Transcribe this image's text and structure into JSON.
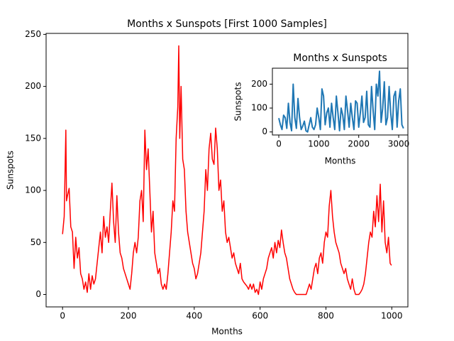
{
  "chart_data": [
    {
      "type": "line",
      "title": "Months x Sunspots [First 1000 Samples]",
      "x_label": "Months",
      "y_label": "Sunspots",
      "xlim": [
        -49.95,
        1048.95
      ],
      "ylim": [
        -11.95,
        250.95
      ],
      "xticks": [
        0,
        200,
        400,
        600,
        800,
        1000
      ],
      "yticks": [
        0,
        50,
        100,
        150,
        200,
        250
      ],
      "x": [
        0,
        5,
        10,
        12,
        15,
        20,
        25,
        30,
        35,
        40,
        45,
        50,
        55,
        60,
        65,
        70,
        75,
        80,
        85,
        90,
        95,
        100,
        105,
        110,
        115,
        120,
        125,
        130,
        135,
        140,
        145,
        150,
        155,
        160,
        165,
        170,
        175,
        180,
        185,
        190,
        195,
        200,
        205,
        210,
        215,
        220,
        225,
        230,
        235,
        240,
        245,
        250,
        255,
        260,
        265,
        270,
        275,
        280,
        285,
        290,
        295,
        300,
        305,
        310,
        315,
        320,
        325,
        330,
        335,
        340,
        345,
        350,
        353,
        356,
        360,
        365,
        370,
        375,
        380,
        385,
        390,
        395,
        400,
        405,
        410,
        415,
        420,
        425,
        430,
        435,
        440,
        445,
        450,
        455,
        460,
        465,
        470,
        475,
        480,
        485,
        490,
        495,
        500,
        505,
        510,
        515,
        520,
        525,
        530,
        535,
        540,
        545,
        550,
        555,
        560,
        565,
        570,
        575,
        580,
        585,
        590,
        595,
        600,
        605,
        610,
        615,
        620,
        625,
        630,
        635,
        640,
        645,
        650,
        655,
        660,
        665,
        670,
        675,
        680,
        685,
        690,
        695,
        700,
        705,
        710,
        720,
        730,
        740,
        745,
        750,
        755,
        760,
        765,
        770,
        775,
        780,
        785,
        790,
        795,
        800,
        805,
        810,
        815,
        820,
        825,
        830,
        835,
        840,
        845,
        850,
        855,
        860,
        865,
        870,
        875,
        880,
        885,
        890,
        895,
        900,
        905,
        910,
        915,
        920,
        925,
        930,
        935,
        940,
        945,
        950,
        955,
        960,
        965,
        970,
        975,
        980,
        985,
        990,
        995,
        999
      ],
      "series": [
        {
          "name": "Sunspots",
          "color": "#ff0000",
          "values": [
            58,
            75,
            158,
            90,
            95,
            102,
            65,
            60,
            25,
            55,
            35,
            45,
            20,
            15,
            5,
            12,
            2,
            20,
            5,
            18,
            10,
            15,
            30,
            45,
            60,
            40,
            75,
            55,
            65,
            50,
            80,
            107,
            70,
            50,
            95,
            60,
            40,
            35,
            25,
            20,
            15,
            10,
            5,
            20,
            40,
            50,
            40,
            55,
            90,
            100,
            70,
            158,
            120,
            140,
            100,
            60,
            80,
            40,
            30,
            20,
            25,
            10,
            5,
            10,
            5,
            20,
            40,
            60,
            90,
            80,
            150,
            180,
            239,
            150,
            200,
            130,
            120,
            80,
            60,
            50,
            40,
            30,
            25,
            15,
            20,
            30,
            40,
            60,
            80,
            120,
            100,
            140,
            155,
            130,
            125,
            160,
            140,
            100,
            110,
            80,
            90,
            60,
            50,
            55,
            45,
            35,
            40,
            30,
            25,
            20,
            30,
            15,
            12,
            10,
            8,
            5,
            10,
            5,
            10,
            2,
            5,
            0,
            12,
            5,
            15,
            20,
            25,
            35,
            40,
            45,
            35,
            50,
            40,
            52,
            45,
            62,
            50,
            40,
            35,
            25,
            15,
            10,
            5,
            2,
            0,
            0,
            0,
            0,
            5,
            10,
            5,
            15,
            25,
            30,
            20,
            35,
            40,
            30,
            50,
            60,
            55,
            85,
            100,
            75,
            60,
            50,
            45,
            40,
            30,
            25,
            20,
            25,
            15,
            10,
            5,
            15,
            5,
            0,
            0,
            0,
            2,
            5,
            10,
            20,
            35,
            50,
            60,
            55,
            80,
            65,
            95,
            70,
            106,
            60,
            90,
            50,
            40,
            55,
            30,
            28
          ]
        }
      ]
    },
    {
      "type": "line",
      "title": "Months x Sunspots",
      "x_label": "Months",
      "y_label": "Sunspots",
      "xlim": [
        -160,
        3230
      ],
      "ylim": [
        -12.7,
        266.7
      ],
      "xticks": [
        0,
        1000,
        2000,
        3000
      ],
      "yticks": [
        0,
        100,
        200
      ],
      "x": [
        0,
        40,
        80,
        120,
        160,
        200,
        240,
        280,
        320,
        360,
        400,
        440,
        480,
        520,
        560,
        600,
        640,
        680,
        720,
        760,
        800,
        840,
        880,
        920,
        960,
        1000,
        1040,
        1080,
        1120,
        1160,
        1200,
        1240,
        1280,
        1320,
        1360,
        1400,
        1440,
        1480,
        1520,
        1560,
        1600,
        1640,
        1680,
        1720,
        1760,
        1800,
        1840,
        1880,
        1920,
        1960,
        2000,
        2040,
        2080,
        2120,
        2160,
        2200,
        2240,
        2280,
        2320,
        2360,
        2400,
        2440,
        2480,
        2520,
        2560,
        2600,
        2640,
        2680,
        2720,
        2760,
        2800,
        2840,
        2880,
        2920,
        2960,
        3000,
        3040,
        3080,
        3120
      ],
      "series": [
        {
          "name": "Sunspots",
          "color": "#1f77b4",
          "values": [
            58,
            30,
            10,
            70,
            60,
            15,
            120,
            40,
            5,
            200,
            60,
            15,
            140,
            60,
            10,
            25,
            45,
            5,
            0,
            30,
            60,
            20,
            10,
            30,
            100,
            60,
            10,
            180,
            150,
            30,
            80,
            100,
            20,
            120,
            60,
            10,
            150,
            80,
            5,
            100,
            70,
            10,
            150,
            90,
            20,
            120,
            60,
            10,
            130,
            120,
            20,
            80,
            150,
            40,
            60,
            170,
            30,
            20,
            190,
            90,
            10,
            200,
            150,
            254,
            40,
            100,
            210,
            30,
            60,
            190,
            80,
            10,
            150,
            170,
            20,
            130,
            180,
            30,
            15
          ]
        }
      ]
    }
  ]
}
